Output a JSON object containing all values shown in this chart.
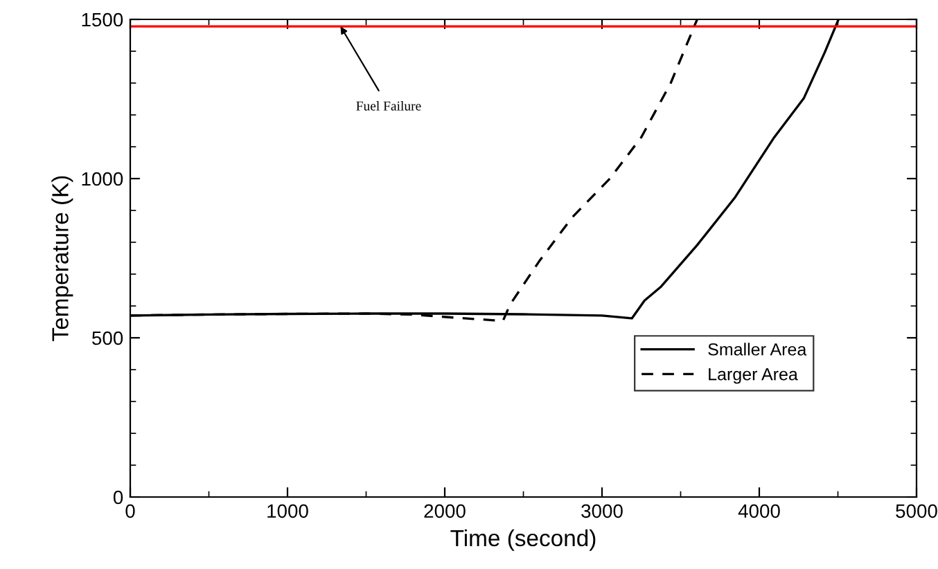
{
  "chart_data": {
    "type": "line",
    "xlabel": "Time (second)",
    "ylabel": "Temperature (K)",
    "xlim": [
      0,
      5000
    ],
    "ylim": [
      0,
      1500
    ],
    "xticks": [
      0,
      1000,
      2000,
      3000,
      4000,
      5000
    ],
    "yticks": [
      0,
      500,
      1000,
      1500
    ],
    "grid": false,
    "legend": "right",
    "marker": "none",
    "series": [
      {
        "name": "Smaller Area",
        "color": "#000000",
        "line_style": "solid",
        "x": [
          0,
          500,
          1000,
          1500,
          2000,
          2500,
          3000,
          3190,
          3270,
          3376,
          3605,
          3843,
          4090,
          4283,
          4416,
          4504
        ],
        "values": [
          570,
          573,
          575,
          576,
          576,
          574,
          570,
          561,
          617,
          661,
          791,
          939,
          1126,
          1252,
          1396,
          1500
        ]
      },
      {
        "name": "Larger Area",
        "color": "#000000",
        "line_style": "dashed",
        "x": [
          0,
          500,
          1000,
          1500,
          1800,
          2100,
          2370,
          2415,
          2600,
          2810,
          3050,
          3250,
          3437,
          3605
        ],
        "values": [
          570,
          573,
          575,
          576,
          573,
          562,
          553,
          604,
          740,
          878,
          1000,
          1130,
          1300,
          1500
        ]
      }
    ],
    "ref_lines": [
      {
        "axis": "y",
        "value": 1478,
        "color": "#ff0000",
        "line_style": "solid"
      }
    ],
    "annotations": [
      {
        "text": "Fuel Failure",
        "x": 1337,
        "y": 1478
      }
    ]
  }
}
